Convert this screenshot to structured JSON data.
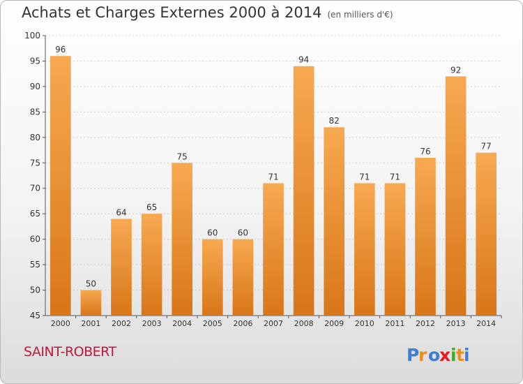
{
  "title": "Achats et Charges Externes 2000 à 2014",
  "subtitle": "(en milliers d'€)",
  "place_name": "SAINT-ROBERT",
  "logo_text": "Proxiti",
  "colors": {
    "bar_top": "#f7a951",
    "bar_bottom": "#d87618",
    "place": "#c0183a",
    "logo_letters": [
      "#3a7fd5",
      "#e8901f",
      "#3a7fd5",
      "#e8191f",
      "#3fae2a",
      "#e8901f",
      "#3a7fd5"
    ]
  },
  "chart_data": {
    "type": "bar",
    "title": "Achats et Charges Externes 2000 à 2014",
    "subtitle": "(en milliers d'€)",
    "categories": [
      "2000",
      "2001",
      "2002",
      "2003",
      "2004",
      "2005",
      "2006",
      "2007",
      "2008",
      "2009",
      "2010",
      "2011",
      "2012",
      "2013",
      "2014"
    ],
    "values": [
      96,
      50,
      64,
      65,
      75,
      60,
      60,
      71,
      94,
      82,
      71,
      71,
      76,
      92,
      77
    ],
    "ylim": [
      45,
      100
    ],
    "yticks": [
      45,
      50,
      55,
      60,
      65,
      70,
      75,
      80,
      85,
      90,
      95,
      100
    ],
    "grid": true,
    "data_labels": true
  }
}
